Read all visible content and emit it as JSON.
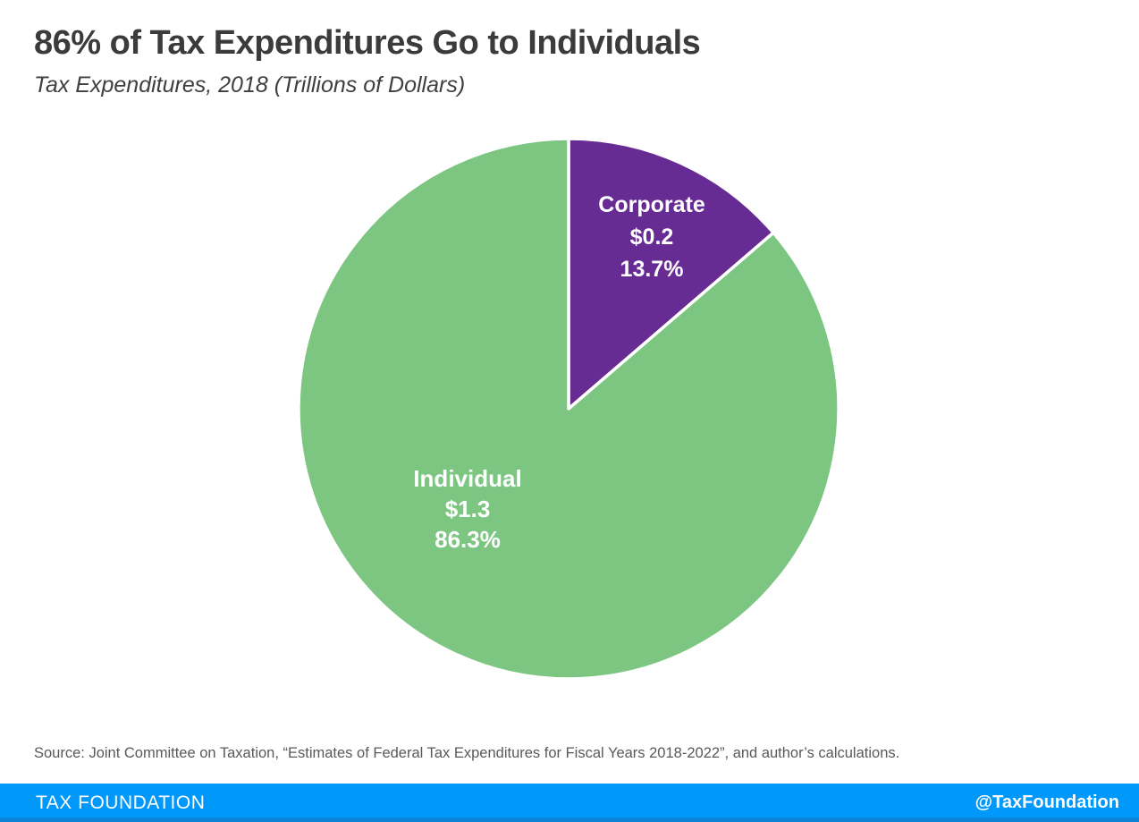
{
  "title": "86% of Tax Expenditures Go to Individuals",
  "subtitle": "Tax Expenditures, 2018 (Trillions of Dollars)",
  "source_note": "Source: Joint Committee on Taxation, “Estimates of Federal Tax Expenditures for Fiscal Years 2018-2022”, and author’s calculations.",
  "footer": {
    "brand": "TAX FOUNDATION",
    "handle": "@TaxFoundation",
    "bar_color": "#0098fb",
    "bar_edge_color": "#0b80cf",
    "text_color": "#ffffff"
  },
  "chart_data": {
    "type": "pie",
    "title": "86% of Tax Expenditures Go to Individuals",
    "subtitle": "Tax Expenditures, 2018 (Trillions of Dollars)",
    "unit": "Trillions of Dollars",
    "year": "2018",
    "start_angle_deg": 0,
    "direction": "clockwise",
    "legend": "none",
    "labels": "inside",
    "separator_color": "#ffffff",
    "slices": [
      {
        "label": "Corporate",
        "value_trillions": 0.2,
        "value_label": "$0.2",
        "percent": 13.7,
        "percent_label": "13.7%",
        "color": "#672b94"
      },
      {
        "label": "Individual",
        "value_trillions": 1.3,
        "value_label": "$1.3",
        "percent": 86.3,
        "percent_label": "86.3%",
        "color": "#7dc682"
      }
    ]
  }
}
